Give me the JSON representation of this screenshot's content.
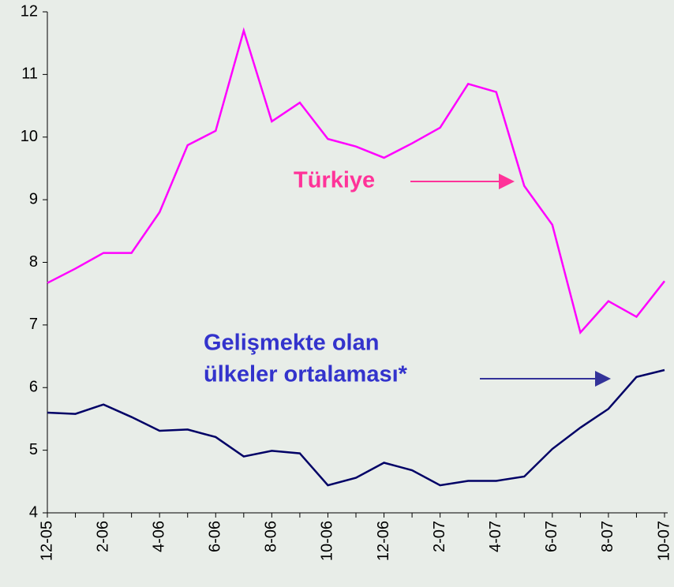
{
  "chart_data": {
    "type": "line",
    "categories": [
      "12-05",
      null,
      "2-06",
      null,
      "4-06",
      null,
      "6-06",
      null,
      "8-06",
      null,
      "10-06",
      null,
      "12-06",
      null,
      "2-07",
      null,
      "4-07",
      null,
      "6-07",
      null,
      "8-07",
      null,
      "10-07"
    ],
    "series": [
      {
        "color": "#ff00ff",
        "values": [
          7.67,
          7.9,
          8.15,
          8.15,
          8.8,
          9.87,
          10.1,
          11.7,
          10.25,
          10.55,
          9.97,
          9.85,
          9.67,
          9.9,
          10.15,
          10.85,
          10.72,
          9.22,
          8.6,
          6.88,
          7.38,
          7.13,
          7.7
        ]
      },
      {
        "color": "#000066",
        "values": [
          5.6,
          5.58,
          5.73,
          5.53,
          5.31,
          5.33,
          5.21,
          4.9,
          4.99,
          4.95,
          4.44,
          4.56,
          4.8,
          4.68,
          4.44,
          4.51,
          4.51,
          4.58,
          5.02,
          5.36,
          5.66,
          6.17,
          6.28
        ]
      }
    ],
    "annotations": [
      {
        "lines": [
          "Türkiye"
        ],
        "color": "#ff3399"
      },
      {
        "lines": [
          "Gelişmekte olan",
          "ülkeler ortalaması*"
        ],
        "color": "#3333cc"
      }
    ],
    "ylim": [
      4,
      12
    ],
    "yticks": [
      4,
      5,
      6,
      7,
      8,
      9,
      10,
      11,
      12
    ],
    "grid": false
  }
}
